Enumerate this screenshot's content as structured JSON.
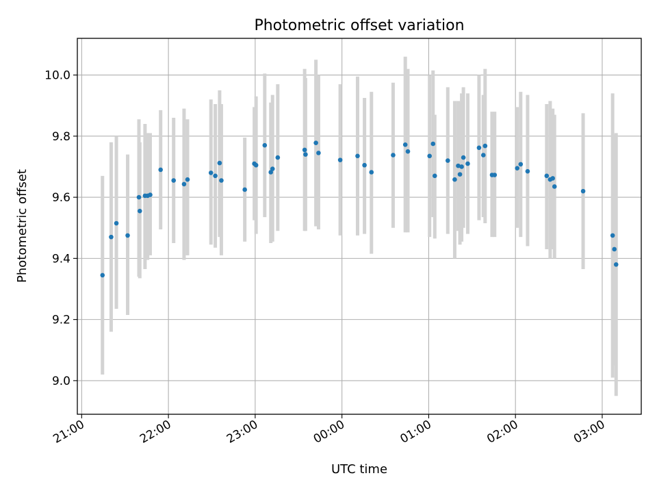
{
  "chart_data": {
    "type": "scatter",
    "title": "Photometric offset variation",
    "xlabel": "UTC time",
    "ylabel": "Photometric offset",
    "x_unit": "hours (UTC, relative to 00:00; negative = previous evening)",
    "xlim": [
      -3.05,
      3.45
    ],
    "ylim": [
      8.89,
      10.12
    ],
    "grid": true,
    "x_ticks": [
      {
        "value": -3,
        "label": "21:00"
      },
      {
        "value": -2,
        "label": "22:00"
      },
      {
        "value": -1,
        "label": "23:00"
      },
      {
        "value": 0,
        "label": "00:00"
      },
      {
        "value": 1,
        "label": "01:00"
      },
      {
        "value": 2,
        "label": "02:00"
      },
      {
        "value": 3,
        "label": "03:00"
      }
    ],
    "y_ticks": [
      {
        "value": 9.0,
        "label": "9.0"
      },
      {
        "value": 9.2,
        "label": "9.2"
      },
      {
        "value": 9.4,
        "label": "9.4"
      },
      {
        "value": 9.6,
        "label": "9.6"
      },
      {
        "value": 9.8,
        "label": "9.8"
      },
      {
        "value": 10.0,
        "label": "10.0"
      }
    ],
    "point_color": "#1f77b4",
    "errorbar_color": "#d3d3d3",
    "series": [
      {
        "points": [
          {
            "x": -2.76,
            "y": 9.345,
            "lo": 9.02,
            "hi": 9.67
          },
          {
            "x": -2.66,
            "y": 9.47,
            "lo": 9.16,
            "hi": 9.78
          },
          {
            "x": -2.6,
            "y": 9.515,
            "lo": 9.235,
            "hi": 9.8
          },
          {
            "x": -2.47,
            "y": 9.475,
            "lo": 9.215,
            "hi": 9.74
          },
          {
            "x": -2.34,
            "y": 9.6,
            "lo": 9.34,
            "hi": 9.855
          },
          {
            "x": -2.33,
            "y": 9.555,
            "lo": 9.335,
            "hi": 9.78
          },
          {
            "x": -2.27,
            "y": 9.605,
            "lo": 9.365,
            "hi": 9.84
          },
          {
            "x": -2.24,
            "y": 9.605,
            "lo": 9.395,
            "hi": 9.81
          },
          {
            "x": -2.21,
            "y": 9.608,
            "lo": 9.41,
            "hi": 9.81
          },
          {
            "x": -2.09,
            "y": 9.69,
            "lo": 9.495,
            "hi": 9.885
          },
          {
            "x": -1.94,
            "y": 9.655,
            "lo": 9.45,
            "hi": 9.86
          },
          {
            "x": -1.82,
            "y": 9.643,
            "lo": 9.395,
            "hi": 9.89
          },
          {
            "x": -1.78,
            "y": 9.658,
            "lo": 9.41,
            "hi": 9.855
          },
          {
            "x": -1.51,
            "y": 9.68,
            "lo": 9.445,
            "hi": 9.92
          },
          {
            "x": -1.46,
            "y": 9.67,
            "lo": 9.435,
            "hi": 9.905
          },
          {
            "x": -1.41,
            "y": 9.712,
            "lo": 9.47,
            "hi": 9.95
          },
          {
            "x": -1.39,
            "y": 9.655,
            "lo": 9.41,
            "hi": 9.905
          },
          {
            "x": -1.12,
            "y": 9.625,
            "lo": 9.455,
            "hi": 9.795
          },
          {
            "x": -1.01,
            "y": 9.71,
            "lo": 9.525,
            "hi": 9.895
          },
          {
            "x": -0.99,
            "y": 9.705,
            "lo": 9.48,
            "hi": 9.93
          },
          {
            "x": -0.89,
            "y": 9.77,
            "lo": 9.535,
            "hi": 10.005
          },
          {
            "x": -0.82,
            "y": 9.682,
            "lo": 9.45,
            "hi": 9.91
          },
          {
            "x": -0.8,
            "y": 9.693,
            "lo": 9.455,
            "hi": 9.935
          },
          {
            "x": -0.74,
            "y": 9.73,
            "lo": 9.49,
            "hi": 9.97
          },
          {
            "x": -0.43,
            "y": 9.755,
            "lo": 9.49,
            "hi": 10.02
          },
          {
            "x": -0.42,
            "y": 9.74,
            "lo": 9.49,
            "hi": 9.99
          },
          {
            "x": -0.3,
            "y": 9.778,
            "lo": 9.505,
            "hi": 10.05
          },
          {
            "x": -0.27,
            "y": 9.745,
            "lo": 9.495,
            "hi": 10.0
          },
          {
            "x": -0.02,
            "y": 9.722,
            "lo": 9.475,
            "hi": 9.97
          },
          {
            "x": 0.18,
            "y": 9.735,
            "lo": 9.475,
            "hi": 9.995
          },
          {
            "x": 0.26,
            "y": 9.705,
            "lo": 9.48,
            "hi": 9.925
          },
          {
            "x": 0.34,
            "y": 9.682,
            "lo": 9.415,
            "hi": 9.945
          },
          {
            "x": 0.59,
            "y": 9.738,
            "lo": 9.5,
            "hi": 9.975
          },
          {
            "x": 0.73,
            "y": 9.772,
            "lo": 9.485,
            "hi": 10.06
          },
          {
            "x": 0.76,
            "y": 9.75,
            "lo": 9.485,
            "hi": 10.02
          },
          {
            "x": 1.01,
            "y": 9.735,
            "lo": 9.47,
            "hi": 10.0
          },
          {
            "x": 1.05,
            "y": 9.775,
            "lo": 9.535,
            "hi": 10.015
          },
          {
            "x": 1.07,
            "y": 9.67,
            "lo": 9.465,
            "hi": 9.87
          },
          {
            "x": 1.22,
            "y": 9.72,
            "lo": 9.48,
            "hi": 9.96
          },
          {
            "x": 1.3,
            "y": 9.658,
            "lo": 9.4,
            "hi": 9.915
          },
          {
            "x": 1.34,
            "y": 9.703,
            "lo": 9.49,
            "hi": 9.915
          },
          {
            "x": 1.36,
            "y": 9.675,
            "lo": 9.445,
            "hi": 9.91
          },
          {
            "x": 1.38,
            "y": 9.7,
            "lo": 9.455,
            "hi": 9.94
          },
          {
            "x": 1.4,
            "y": 9.73,
            "lo": 9.5,
            "hi": 9.96
          },
          {
            "x": 1.45,
            "y": 9.71,
            "lo": 9.48,
            "hi": 9.94
          },
          {
            "x": 1.58,
            "y": 9.762,
            "lo": 9.525,
            "hi": 10.0
          },
          {
            "x": 1.63,
            "y": 9.738,
            "lo": 9.535,
            "hi": 9.935
          },
          {
            "x": 1.65,
            "y": 9.768,
            "lo": 9.515,
            "hi": 10.02
          },
          {
            "x": 1.73,
            "y": 9.673,
            "lo": 9.47,
            "hi": 9.88
          },
          {
            "x": 1.76,
            "y": 9.673,
            "lo": 9.47,
            "hi": 9.88
          },
          {
            "x": 2.02,
            "y": 9.695,
            "lo": 9.5,
            "hi": 9.895
          },
          {
            "x": 2.06,
            "y": 9.708,
            "lo": 9.47,
            "hi": 9.945
          },
          {
            "x": 2.14,
            "y": 9.685,
            "lo": 9.44,
            "hi": 9.935
          },
          {
            "x": 2.36,
            "y": 9.67,
            "lo": 9.43,
            "hi": 9.905
          },
          {
            "x": 2.4,
            "y": 9.658,
            "lo": 9.4,
            "hi": 9.915
          },
          {
            "x": 2.43,
            "y": 9.662,
            "lo": 9.43,
            "hi": 9.89
          },
          {
            "x": 2.45,
            "y": 9.635,
            "lo": 9.4,
            "hi": 9.87
          },
          {
            "x": 2.78,
            "y": 9.62,
            "lo": 9.365,
            "hi": 9.875
          },
          {
            "x": 3.12,
            "y": 9.475,
            "lo": 9.01,
            "hi": 9.94
          },
          {
            "x": 3.14,
            "y": 9.43,
            "lo": 9.05,
            "hi": 9.805
          },
          {
            "x": 3.16,
            "y": 9.38,
            "lo": 8.95,
            "hi": 9.81
          }
        ]
      }
    ]
  }
}
